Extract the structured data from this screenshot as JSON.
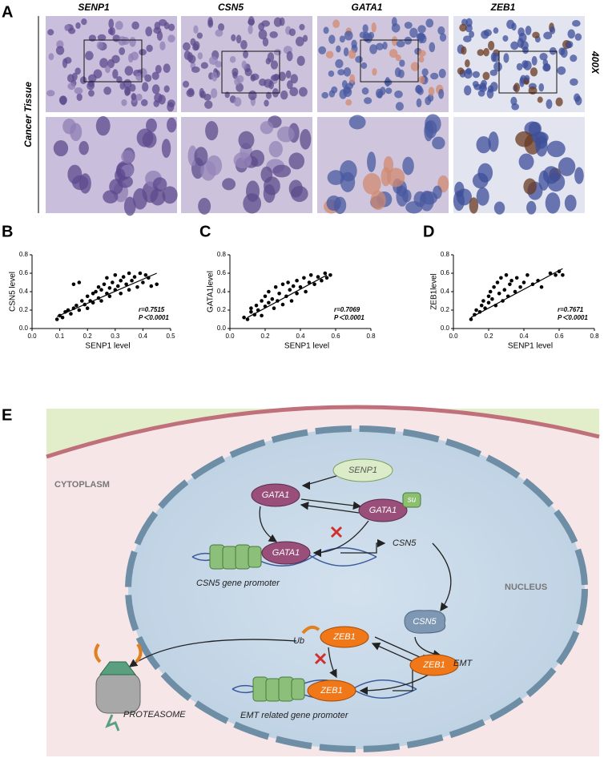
{
  "panel_a": {
    "label": "A",
    "column_headers": [
      "SENP1",
      "CSN5",
      "GATA1",
      "ZEB1"
    ],
    "row_label": "Cancer Tissue",
    "magnification": "400X"
  },
  "chart_data": [
    {
      "type": "scatter",
      "label": "B",
      "xlabel": "SENP1 level",
      "ylabel": "CSN5 level",
      "annotations": [
        "r=0.7515",
        "P＜0.0001"
      ],
      "color": "#000000",
      "xlim": [
        0,
        0.5
      ],
      "ylim": [
        0,
        0.8
      ],
      "xticks": [
        {
          "value": 0,
          "label": "0.0"
        },
        0.1,
        0.2,
        0.3,
        0.4,
        0.5
      ],
      "yticks": [
        {
          "value": 0,
          "label": "0.0"
        },
        0.2,
        0.4,
        0.6,
        0.8
      ],
      "x": [
        0.09,
        0.1,
        0.11,
        0.12,
        0.13,
        0.14,
        0.15,
        0.15,
        0.16,
        0.17,
        0.17,
        0.18,
        0.19,
        0.2,
        0.2,
        0.21,
        0.22,
        0.22,
        0.23,
        0.24,
        0.24,
        0.25,
        0.25,
        0.26,
        0.27,
        0.27,
        0.28,
        0.28,
        0.29,
        0.3,
        0.3,
        0.31,
        0.32,
        0.32,
        0.33,
        0.34,
        0.35,
        0.35,
        0.36,
        0.37,
        0.38,
        0.39,
        0.4,
        0.41,
        0.42,
        0.43,
        0.45
      ],
      "values": [
        0.1,
        0.14,
        0.12,
        0.18,
        0.2,
        0.16,
        0.22,
        0.48,
        0.25,
        0.2,
        0.5,
        0.3,
        0.26,
        0.35,
        0.22,
        0.3,
        0.38,
        0.28,
        0.4,
        0.33,
        0.45,
        0.42,
        0.3,
        0.48,
        0.38,
        0.55,
        0.44,
        0.35,
        0.5,
        0.58,
        0.42,
        0.46,
        0.52,
        0.38,
        0.56,
        0.48,
        0.6,
        0.42,
        0.52,
        0.56,
        0.45,
        0.6,
        0.5,
        0.58,
        0.55,
        0.46,
        0.48
      ],
      "fit_line": {
        "x": [
          0.09,
          0.45
        ],
        "y": [
          0.13,
          0.6
        ]
      }
    },
    {
      "type": "scatter",
      "label": "C",
      "xlabel": "SENP1  level",
      "ylabel": "GATA1level",
      "annotations": [
        "r=0.7069",
        "P＜0.0001"
      ],
      "color": "#000000",
      "xlim": [
        0,
        0.8
      ],
      "ylim": [
        0,
        0.8
      ],
      "xticks": [
        {
          "value": 0,
          "label": "0.0"
        },
        0.2,
        0.4,
        0.6,
        0.8
      ],
      "yticks": [
        {
          "value": 0,
          "label": "0.0"
        },
        0.2,
        0.4,
        0.6,
        0.8
      ],
      "x": [
        0.08,
        0.1,
        0.12,
        0.12,
        0.14,
        0.15,
        0.16,
        0.18,
        0.18,
        0.2,
        0.2,
        0.22,
        0.22,
        0.24,
        0.25,
        0.26,
        0.27,
        0.28,
        0.3,
        0.3,
        0.32,
        0.33,
        0.34,
        0.35,
        0.36,
        0.38,
        0.38,
        0.4,
        0.42,
        0.43,
        0.45,
        0.46,
        0.48,
        0.5,
        0.52,
        0.54,
        0.55,
        0.57
      ],
      "values": [
        0.12,
        0.1,
        0.18,
        0.22,
        0.15,
        0.25,
        0.2,
        0.3,
        0.14,
        0.35,
        0.24,
        0.28,
        0.4,
        0.32,
        0.22,
        0.45,
        0.3,
        0.38,
        0.48,
        0.26,
        0.35,
        0.5,
        0.42,
        0.3,
        0.46,
        0.52,
        0.38,
        0.45,
        0.55,
        0.4,
        0.5,
        0.58,
        0.48,
        0.56,
        0.52,
        0.6,
        0.55,
        0.58
      ],
      "fit_line": {
        "x": [
          0.1,
          0.55
        ],
        "y": [
          0.12,
          0.58
        ]
      }
    },
    {
      "type": "scatter",
      "label": "D",
      "xlabel": "SENP1  level",
      "ylabel": "ZEB1level",
      "annotations": [
        "r=0.7671",
        "P＜0.0001"
      ],
      "color": "#000000",
      "xlim": [
        0,
        0.8
      ],
      "ylim": [
        0,
        0.8
      ],
      "xticks": [
        {
          "value": 0,
          "label": "0.0"
        },
        0.2,
        0.4,
        0.6,
        0.8
      ],
      "yticks": [
        {
          "value": 0,
          "label": "0.0"
        },
        0.2,
        0.4,
        0.6,
        0.8
      ],
      "x": [
        0.1,
        0.12,
        0.13,
        0.15,
        0.16,
        0.17,
        0.18,
        0.2,
        0.2,
        0.21,
        0.22,
        0.23,
        0.24,
        0.25,
        0.26,
        0.27,
        0.28,
        0.29,
        0.3,
        0.31,
        0.32,
        0.33,
        0.35,
        0.36,
        0.38,
        0.4,
        0.42,
        0.45,
        0.48,
        0.5,
        0.55,
        0.58,
        0.6,
        0.62
      ],
      "values": [
        0.1,
        0.15,
        0.2,
        0.18,
        0.25,
        0.3,
        0.22,
        0.35,
        0.28,
        0.4,
        0.32,
        0.45,
        0.25,
        0.5,
        0.38,
        0.55,
        0.3,
        0.42,
        0.58,
        0.35,
        0.48,
        0.52,
        0.4,
        0.55,
        0.45,
        0.5,
        0.58,
        0.48,
        0.52,
        0.45,
        0.6,
        0.58,
        0.62,
        0.58
      ],
      "fit_line": {
        "x": [
          0.1,
          0.62
        ],
        "y": [
          0.12,
          0.65
        ]
      }
    }
  ],
  "diagram": {
    "label": "E",
    "regions": {
      "cytoplasm": "CYTOPLASM",
      "nucleus": "NUCLEUS"
    },
    "nodes": {
      "senp1": "SENP1",
      "gata1": "GATA1",
      "gata1_su": "GATA1",
      "su": "su",
      "gata1_dna": "GATA1",
      "csn5_gene": "CSN5",
      "csn5_promoter": "CSN5 gene promoter",
      "csn5_protein": "CSN5",
      "ub": "Ub",
      "zeb1_ub": "ZEB1",
      "zeb1": "ZEB1",
      "zeb1_dna": "ZEB1",
      "emt": "EMT",
      "emt_promoter": "EMT related gene promoter",
      "proteasome": "PROTEASOME"
    }
  }
}
